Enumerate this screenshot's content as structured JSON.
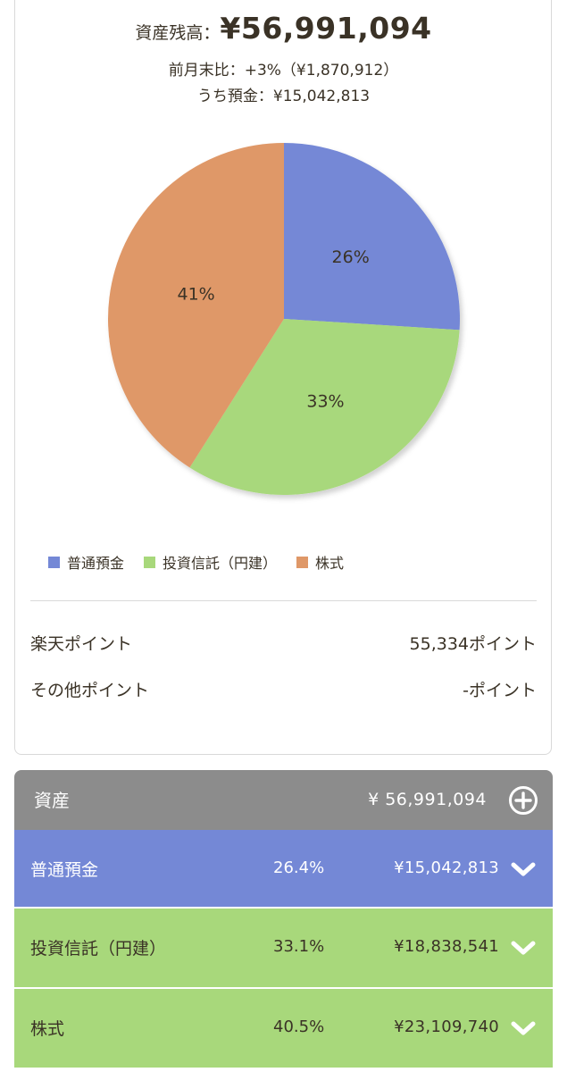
{
  "summary": {
    "balance_label": "資産残高：",
    "balance_value": "¥56,991,094",
    "monthly_change": "前月末比：+3%（¥1,870,912）",
    "deposit": "うち預金：¥15,042,813"
  },
  "chart_data": {
    "type": "pie",
    "title": "",
    "slices": [
      {
        "name": "普通預金",
        "value": 26,
        "label": "26%",
        "color": "#7488d6"
      },
      {
        "name": "投資信託（円建）",
        "value": 33,
        "label": "33%",
        "color": "#a8d87b"
      },
      {
        "name": "株式",
        "value": 41,
        "label": "41%",
        "color": "#df9868"
      }
    ],
    "legend": "bottom"
  },
  "points": {
    "rakuten_label": "楽天ポイント",
    "rakuten_value": "55,334ポイント",
    "other_label": "その他ポイント",
    "other_value": "-ポイント"
  },
  "assets": {
    "header_title": "資産",
    "header_total": "¥ 56,991,094",
    "add_icon": "plus-circle-icon",
    "rows": [
      {
        "name": "普通預金",
        "percent": "26.4%",
        "amount": "¥15,042,813"
      },
      {
        "name": "投資信託（円建）",
        "percent": "33.1%",
        "amount": "¥18,838,541"
      },
      {
        "name": "株式",
        "percent": "40.5%",
        "amount": "¥23,109,740"
      }
    ],
    "chevron_icon": "chevron-down-icon"
  }
}
